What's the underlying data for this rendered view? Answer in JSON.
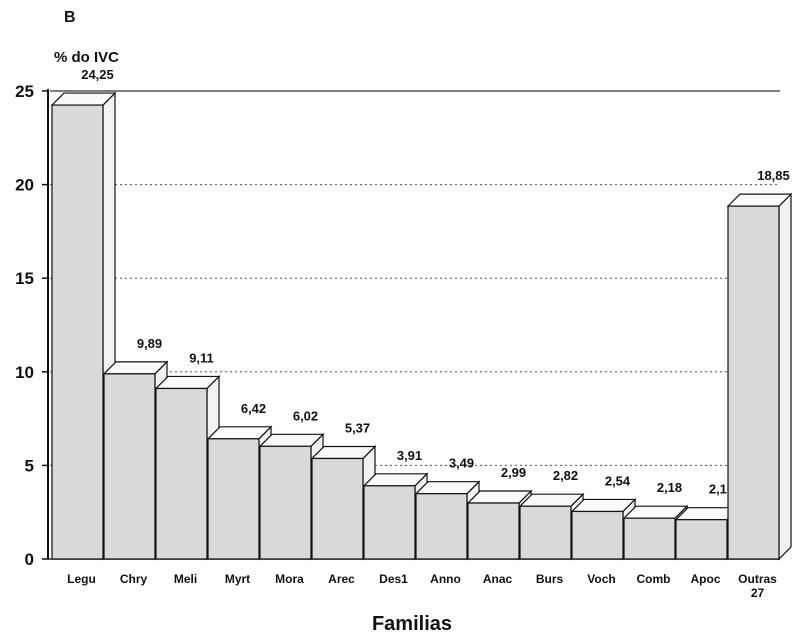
{
  "chart_data": {
    "type": "bar",
    "title": "B",
    "y_label": "% do IVC",
    "x_label": "Familias",
    "categories": [
      "Legu",
      "Chry",
      "Meli",
      "Myrt",
      "Mora",
      "Arec",
      "Des1",
      "Anno",
      "Anac",
      "Burs",
      "Voch",
      "Comb",
      "Apoc",
      "Outras\n27"
    ],
    "values": [
      24.25,
      9.89,
      9.11,
      6.42,
      6.02,
      5.37,
      3.91,
      3.49,
      2.99,
      2.82,
      2.54,
      2.18,
      2.1,
      18.85
    ],
    "value_labels": [
      "24,25",
      "9,89",
      "9,11",
      "6,42",
      "6,02",
      "5,37",
      "3,91",
      "3,49",
      "2,99",
      "2,82",
      "2,54",
      "2,18",
      "2,10",
      "18,85"
    ],
    "color": "#d9d9d9",
    "ylim": [
      0,
      25
    ],
    "yticks": [
      0,
      5,
      10,
      15,
      20,
      25
    ],
    "grid": true
  }
}
